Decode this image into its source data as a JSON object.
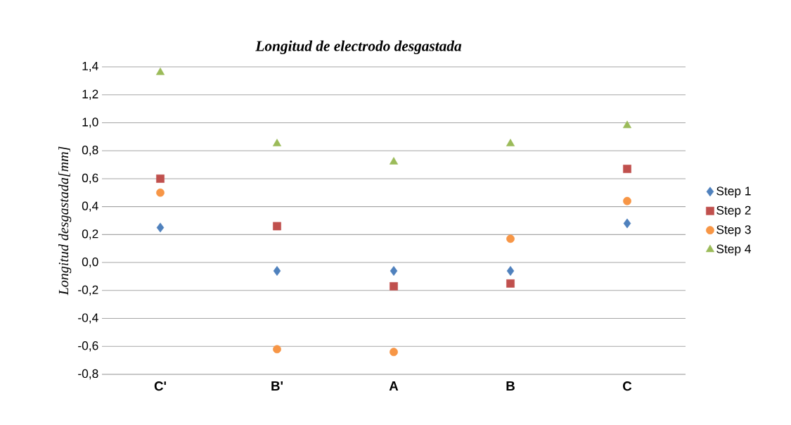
{
  "chart_data": {
    "type": "scatter",
    "title": "Longitud de electrodo desgastada",
    "ylabel": "Longitud desgastada[mm]",
    "categories": [
      "C'",
      "B'",
      "A",
      "B",
      "C"
    ],
    "series": [
      {
        "name": "Step 1",
        "color": "#4f81bd",
        "marker": "diamond",
        "values": [
          0.25,
          -0.06,
          -0.06,
          -0.06,
          0.28
        ]
      },
      {
        "name": "Step 2",
        "color": "#c0504d",
        "marker": "square",
        "values": [
          0.6,
          0.26,
          -0.17,
          -0.15,
          0.67
        ]
      },
      {
        "name": "Step 3",
        "color": "#f79646",
        "marker": "circle",
        "values": [
          0.5,
          -0.62,
          -0.64,
          0.17,
          0.44
        ]
      },
      {
        "name": "Step 4",
        "color": "#9bbb59",
        "marker": "triangle",
        "values": [
          1.36,
          0.85,
          0.72,
          0.85,
          0.98
        ]
      }
    ],
    "ylim": [
      -0.8,
      1.4
    ],
    "yticks": [
      {
        "value": -0.8,
        "label": "-0,8"
      },
      {
        "value": -0.6,
        "label": "-0,6"
      },
      {
        "value": -0.4,
        "label": "-0,4"
      },
      {
        "value": -0.2,
        "label": "-0,2"
      },
      {
        "value": 0.0,
        "label": "0,0"
      },
      {
        "value": 0.2,
        "label": "0,2"
      },
      {
        "value": 0.4,
        "label": "0,4"
      },
      {
        "value": 0.6,
        "label": "0,6"
      },
      {
        "value": 0.8,
        "label": "0,8"
      },
      {
        "value": 1.0,
        "label": "1,0"
      },
      {
        "value": 1.2,
        "label": "1,2"
      },
      {
        "value": 1.4,
        "label": "1,4"
      }
    ],
    "grid": "y",
    "legend": "right"
  }
}
